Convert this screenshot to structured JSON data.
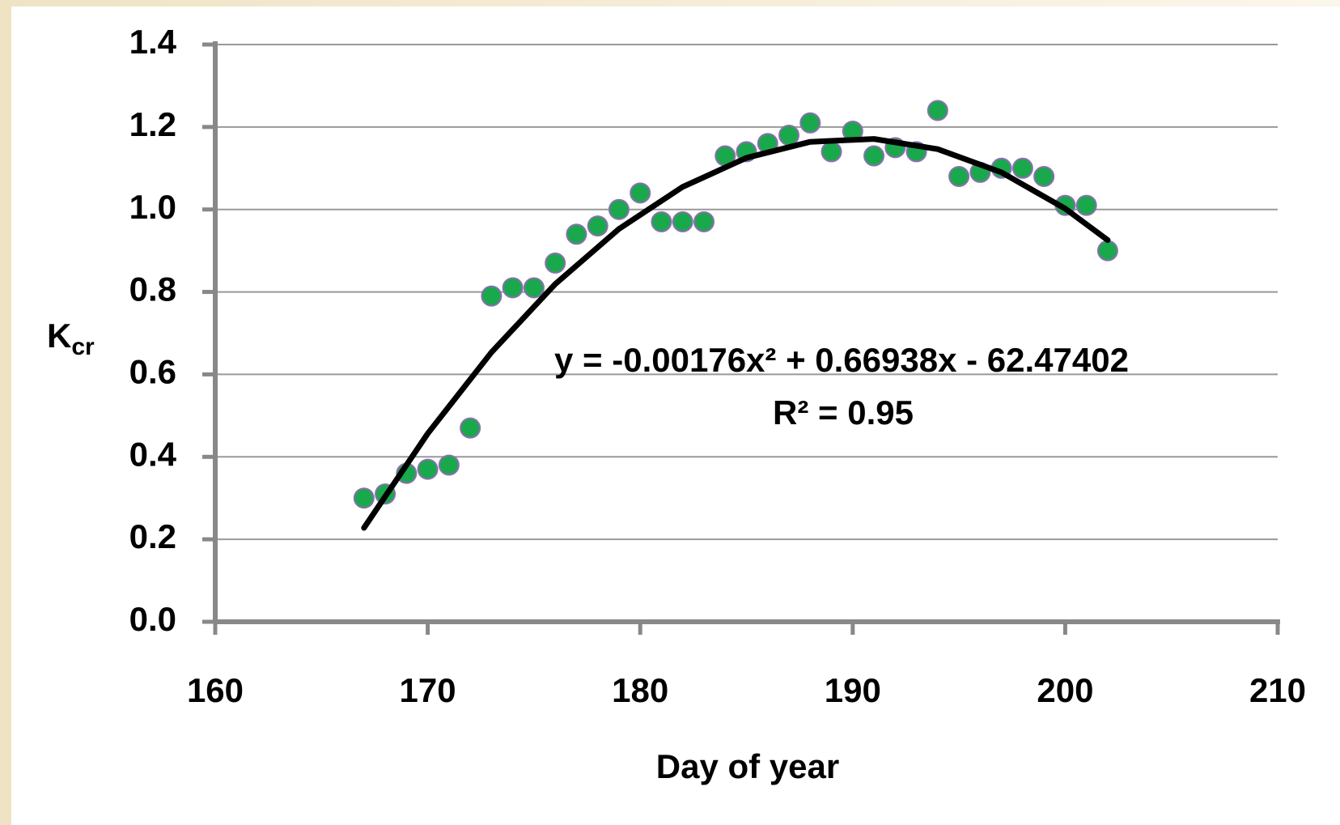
{
  "chart_data": {
    "type": "scatter",
    "x_label": "Day of year",
    "y_label": {
      "main": "K",
      "sub": "cr"
    },
    "annotations": [
      "y = -0.00176x² + 0.66938x - 62.47402",
      "R² = 0.95"
    ],
    "xlim": [
      160,
      210
    ],
    "xticks": [
      160,
      170,
      180,
      190,
      200,
      210
    ],
    "ylim": [
      0,
      1.4
    ],
    "yticks": [
      {
        "value": 0,
        "label": "0.0"
      },
      {
        "value": 0.2,
        "label": "0.2"
      },
      {
        "value": 0.4,
        "label": "0.4"
      },
      {
        "value": 0.6,
        "label": "0.6"
      },
      {
        "value": 0.8,
        "label": "0.8"
      },
      {
        "value": 1,
        "label": "1.0"
      },
      {
        "value": 1.2,
        "label": "1.2"
      },
      {
        "value": 1.4,
        "label": "1.4"
      }
    ],
    "grid": true,
    "series": [
      {
        "type": "scatter",
        "color": "#1aa84c",
        "x": [
          167,
          168,
          169,
          170,
          171,
          172,
          173,
          174,
          175,
          176,
          177,
          178,
          179,
          180,
          181,
          182,
          183,
          184,
          185,
          186,
          187,
          188,
          189,
          190,
          191,
          192,
          193,
          194,
          195,
          196,
          197,
          198,
          199,
          200,
          201,
          202
        ],
        "values": [
          0.3,
          0.31,
          0.36,
          0.37,
          0.38,
          0.47,
          0.79,
          0.81,
          0.81,
          0.87,
          0.94,
          0.96,
          1.0,
          1.04,
          0.97,
          0.97,
          0.97,
          1.13,
          1.14,
          1.16,
          1.18,
          1.21,
          1.14,
          1.19,
          1.13,
          1.15,
          1.14,
          1.24,
          1.08,
          1.09,
          1.1,
          1.1,
          1.08,
          1.01,
          1.01,
          0.9
        ]
      },
      {
        "type": "line",
        "color": "#000000",
        "x": [
          167,
          170,
          173,
          176,
          179,
          182,
          185,
          188,
          191,
          194,
          197,
          200,
          202
        ],
        "values": [
          0.2278,
          0.4565,
          0.6536,
          0.8191,
          0.9528,
          1.0549,
          1.1252,
          1.164,
          1.171,
          1.1463,
          1.09,
          1.002,
          0.9257
        ]
      }
    ]
  }
}
